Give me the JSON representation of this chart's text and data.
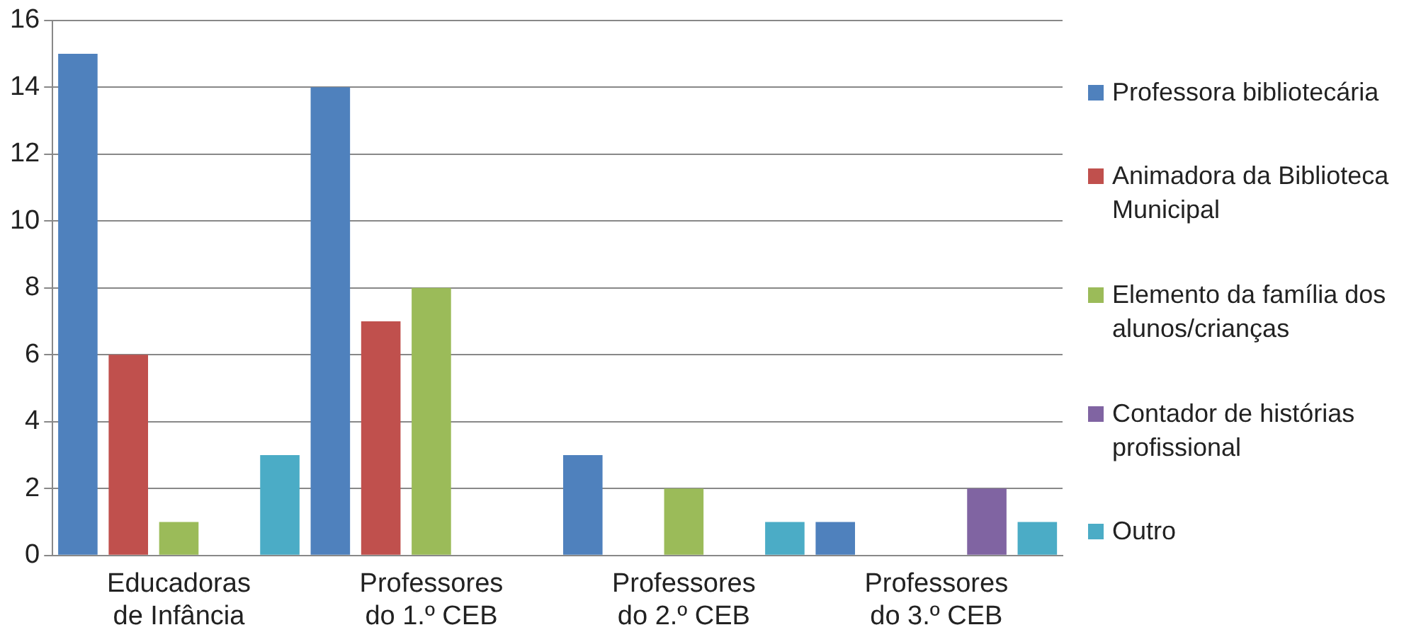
{
  "chart_data": {
    "type": "bar",
    "categories": [
      "Educadoras de Infância",
      "Professores do 1.º CEB",
      "Professores do 2.º CEB",
      "Professores do 3.º CEB"
    ],
    "series": [
      {
        "name": "Professora bibliotecária",
        "color": "#4f81bd",
        "values": [
          15,
          14,
          3,
          1
        ]
      },
      {
        "name": "Animadora da Biblioteca Municipal",
        "color": "#c0504d",
        "values": [
          6,
          7,
          0,
          0
        ]
      },
      {
        "name": "Elemento da família dos alunos/crianças",
        "color": "#9bbb59",
        "values": [
          1,
          8,
          2,
          0
        ]
      },
      {
        "name": "Contador de histórias profissional",
        "color": "#8064a2",
        "values": [
          0,
          0,
          0,
          2
        ]
      },
      {
        "name": "Outro",
        "color": "#4bacc6",
        "values": [
          3,
          0,
          1,
          1
        ]
      }
    ],
    "ylim": [
      0,
      16
    ],
    "yticks": [
      0,
      2,
      4,
      6,
      8,
      10,
      12,
      14,
      16
    ],
    "grid": "y",
    "legend": "right"
  }
}
